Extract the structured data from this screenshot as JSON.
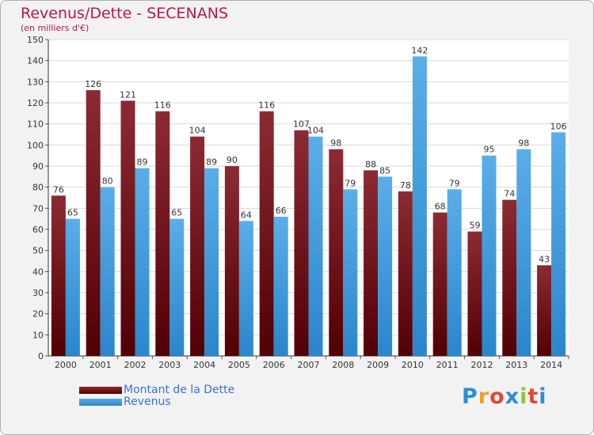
{
  "chart_data": {
    "type": "bar",
    "title": "Revenus/Dette - SECENANS",
    "subtitle": "(en milliers d'€)",
    "categories": [
      "2000",
      "2001",
      "2002",
      "2003",
      "2004",
      "2005",
      "2006",
      "2007",
      "2008",
      "2009",
      "2010",
      "2011",
      "2012",
      "2013",
      "2014"
    ],
    "series": [
      {
        "name": "Montant de la Dette",
        "color": "#7b1a1e",
        "values": [
          76,
          126,
          121,
          116,
          104,
          90,
          116,
          107,
          98,
          88,
          78,
          68,
          59,
          74,
          43
        ]
      },
      {
        "name": "Revenus",
        "color": "#3a9de2",
        "values": [
          65,
          80,
          89,
          65,
          89,
          64,
          66,
          104,
          79,
          85,
          142,
          79,
          95,
          98,
          106
        ]
      }
    ],
    "ylim": [
      0,
      150
    ],
    "ytick_step": 10,
    "grid": true,
    "legend_position": "bottom-left",
    "data_labels": true
  },
  "branding": {
    "logo_text": "Proxiti"
  }
}
